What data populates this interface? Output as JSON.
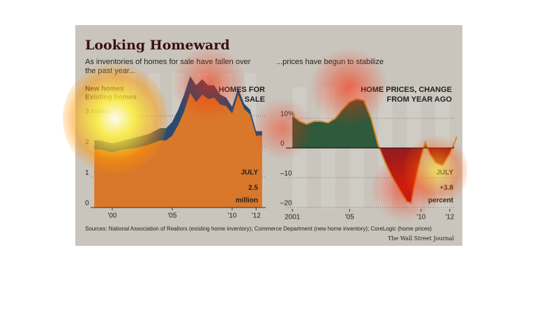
{
  "title": "Looking Homeward",
  "sources": "Sources: National Association of Realtors (existing home inventory); Commerce Department (new home inventory); CoreLogic (home prices)",
  "credit": "The Wall Street Journal",
  "chart_data": [
    {
      "type": "stacked-area",
      "subtitle": "As inventories of homes for sale have fallen over the past year...",
      "label": "HOMES FOR SALE",
      "callout": {
        "month": "JULY",
        "value": 2.5,
        "unit": "million"
      },
      "x": [
        1998.5,
        1999,
        2000,
        2001,
        2002,
        2003,
        2004,
        2004.5,
        2005,
        2005.5,
        2006,
        2006.5,
        2007,
        2007.5,
        2008,
        2008.5,
        2009,
        2009.5,
        2010,
        2010.5,
        2011,
        2011.5,
        2012,
        2012.5
      ],
      "series": [
        {
          "name": "Existing homes",
          "color": "#d9772a",
          "values": [
            1.9,
            1.9,
            1.8,
            1.9,
            1.95,
            2.05,
            2.2,
            2.2,
            2.35,
            2.7,
            3.15,
            3.75,
            3.45,
            3.7,
            3.55,
            3.6,
            3.37,
            3.32,
            3.08,
            3.7,
            3.23,
            3.04,
            2.35,
            2.36
          ]
        },
        {
          "name": "New homes",
          "color": "#2b4a6e",
          "values": [
            0.3,
            0.3,
            0.3,
            0.3,
            0.35,
            0.35,
            0.4,
            0.4,
            0.45,
            0.5,
            0.55,
            0.55,
            0.55,
            0.5,
            0.45,
            0.4,
            0.33,
            0.28,
            0.22,
            0.2,
            0.17,
            0.16,
            0.15,
            0.14
          ]
        }
      ],
      "xlim": [
        1998.2,
        2012.8
      ],
      "xticks": [
        {
          "value": 2000,
          "label": "'00"
        },
        {
          "value": 2005,
          "label": "'05"
        },
        {
          "value": 2010,
          "label": "'10"
        },
        {
          "value": 2012,
          "label": "'12"
        }
      ],
      "ylim": [
        0,
        4.4
      ],
      "yticks": [
        0,
        1,
        2,
        {
          "value": 3,
          "label": "3 million"
        }
      ],
      "grid": true
    },
    {
      "type": "area",
      "subtitle": "...prices have begun to stabilize",
      "label": "HOME PRICES, CHANGE FROM YEAR AGO",
      "callout": {
        "month": "JULY",
        "value": 3.8,
        "value_label": "+3.8",
        "unit": "percent"
      },
      "x": [
        2001,
        2001.5,
        2002,
        2002.5,
        2003,
        2003.5,
        2004,
        2004.5,
        2005,
        2005.5,
        2006,
        2006.5,
        2007,
        2007.5,
        2008,
        2008.5,
        2009,
        2009.3,
        2009.5,
        2010,
        2010.3,
        2010.6,
        2011,
        2011.5,
        2012,
        2012.5
      ],
      "values": [
        11,
        9,
        8,
        9,
        9,
        8.5,
        10,
        13,
        15.5,
        16.5,
        16,
        10,
        1,
        -5,
        -10,
        -14,
        -18,
        -18.5,
        -13,
        -3,
        2,
        -2,
        -5,
        -6,
        -2,
        3.8
      ],
      "color": "#d88a2a",
      "positive_color": "#2f5a3c",
      "negative_color": "#9e1b1b",
      "xlim": [
        2000.55,
        2012.3
      ],
      "xticks": [
        {
          "value": 2001,
          "label": "2001"
        },
        {
          "value": 2005,
          "label": "'05"
        },
        {
          "value": 2010,
          "label": "'10"
        },
        {
          "value": 2012,
          "label": "'12"
        }
      ],
      "ylim": [
        -20.5,
        20.5
      ],
      "yticks": [
        {
          "value": 10,
          "label": "10%"
        },
        0,
        {
          "value": -10,
          "label": "–10"
        },
        {
          "value": -20,
          "label": "–20"
        }
      ],
      "grid": true
    }
  ]
}
